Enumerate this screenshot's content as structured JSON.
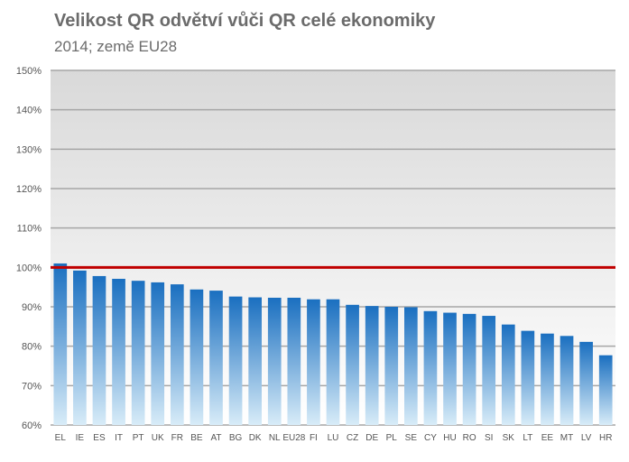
{
  "chart_data": {
    "type": "bar",
    "title": "Velikost QR odvětví vůči QR celé ekonomiky",
    "subtitle": "2014; země EU28",
    "categories": [
      "EL",
      "IE",
      "ES",
      "IT",
      "PT",
      "UK",
      "FR",
      "BE",
      "AT",
      "BG",
      "DK",
      "NL",
      "EU28",
      "FI",
      "LU",
      "CZ",
      "DE",
      "PL",
      "SE",
      "CY",
      "HU",
      "RO",
      "SI",
      "SK",
      "LT",
      "EE",
      "MT",
      "LV",
      "HR"
    ],
    "values": [
      101,
      99.2,
      97.8,
      97.1,
      96.6,
      96.2,
      95.7,
      94.4,
      94.1,
      92.6,
      92.4,
      92.3,
      92.3,
      91.9,
      91.9,
      90.5,
      90.2,
      90.0,
      89.9,
      88.9,
      88.5,
      88.2,
      87.7,
      85.5,
      83.9,
      83.2,
      82.6,
      81.1,
      77.7
    ],
    "ylim": [
      60,
      150
    ],
    "yticks": [
      60,
      70,
      80,
      90,
      100,
      110,
      120,
      130,
      140,
      150
    ],
    "ytick_labels": [
      "60%",
      "70%",
      "80%",
      "90%",
      "100%",
      "110%",
      "120%",
      "130%",
      "140%",
      "150%"
    ],
    "reference_line": 100,
    "grid": true,
    "colors": {
      "bar_top": "#1a6fc0",
      "bar_bottom": "#d8ecf8",
      "reference_line": "#c00000",
      "plot_bg_top": "#d9d9d9",
      "plot_bg_bottom": "#ffffff",
      "grid": "#a6a6a6"
    }
  }
}
